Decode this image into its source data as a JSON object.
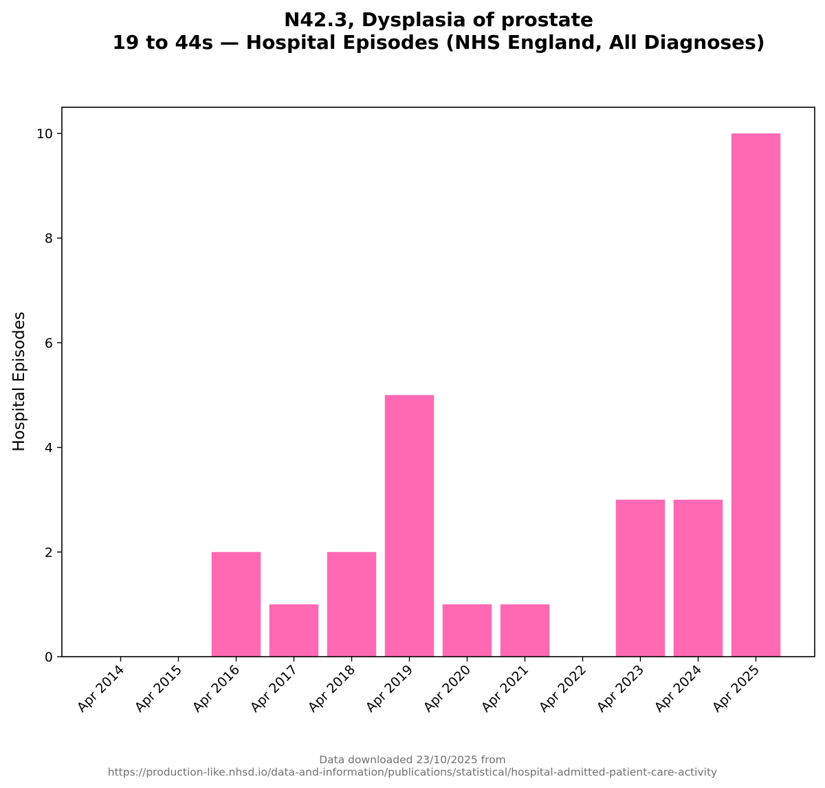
{
  "chart_data": {
    "type": "bar",
    "title_line1": "N42.3, Dysplasia of prostate",
    "title_line2": "19 to 44s — Hospital Episodes (NHS England, All Diagnoses)",
    "xlabel": "",
    "ylabel": "Hospital Episodes",
    "categories": [
      "Apr 2014",
      "Apr 2015",
      "Apr 2016",
      "Apr 2017",
      "Apr 2018",
      "Apr 2019",
      "Apr 2020",
      "Apr 2021",
      "Apr 2022",
      "Apr 2023",
      "Apr 2024",
      "Apr 2025"
    ],
    "values": [
      0,
      0,
      2,
      1,
      2,
      5,
      1,
      1,
      0,
      3,
      3,
      10
    ],
    "yticks": [
      0,
      2,
      4,
      6,
      8,
      10
    ],
    "ylim": [
      0,
      10.5
    ],
    "bar_color": "#ff69b4",
    "grid": false,
    "legend": "none"
  },
  "footer": {
    "line1": "Data downloaded 23/10/2025 from",
    "line2": "https://production-like.nhsd.io/data-and-information/publications/statistical/hospital-admitted-patient-care-activity"
  }
}
